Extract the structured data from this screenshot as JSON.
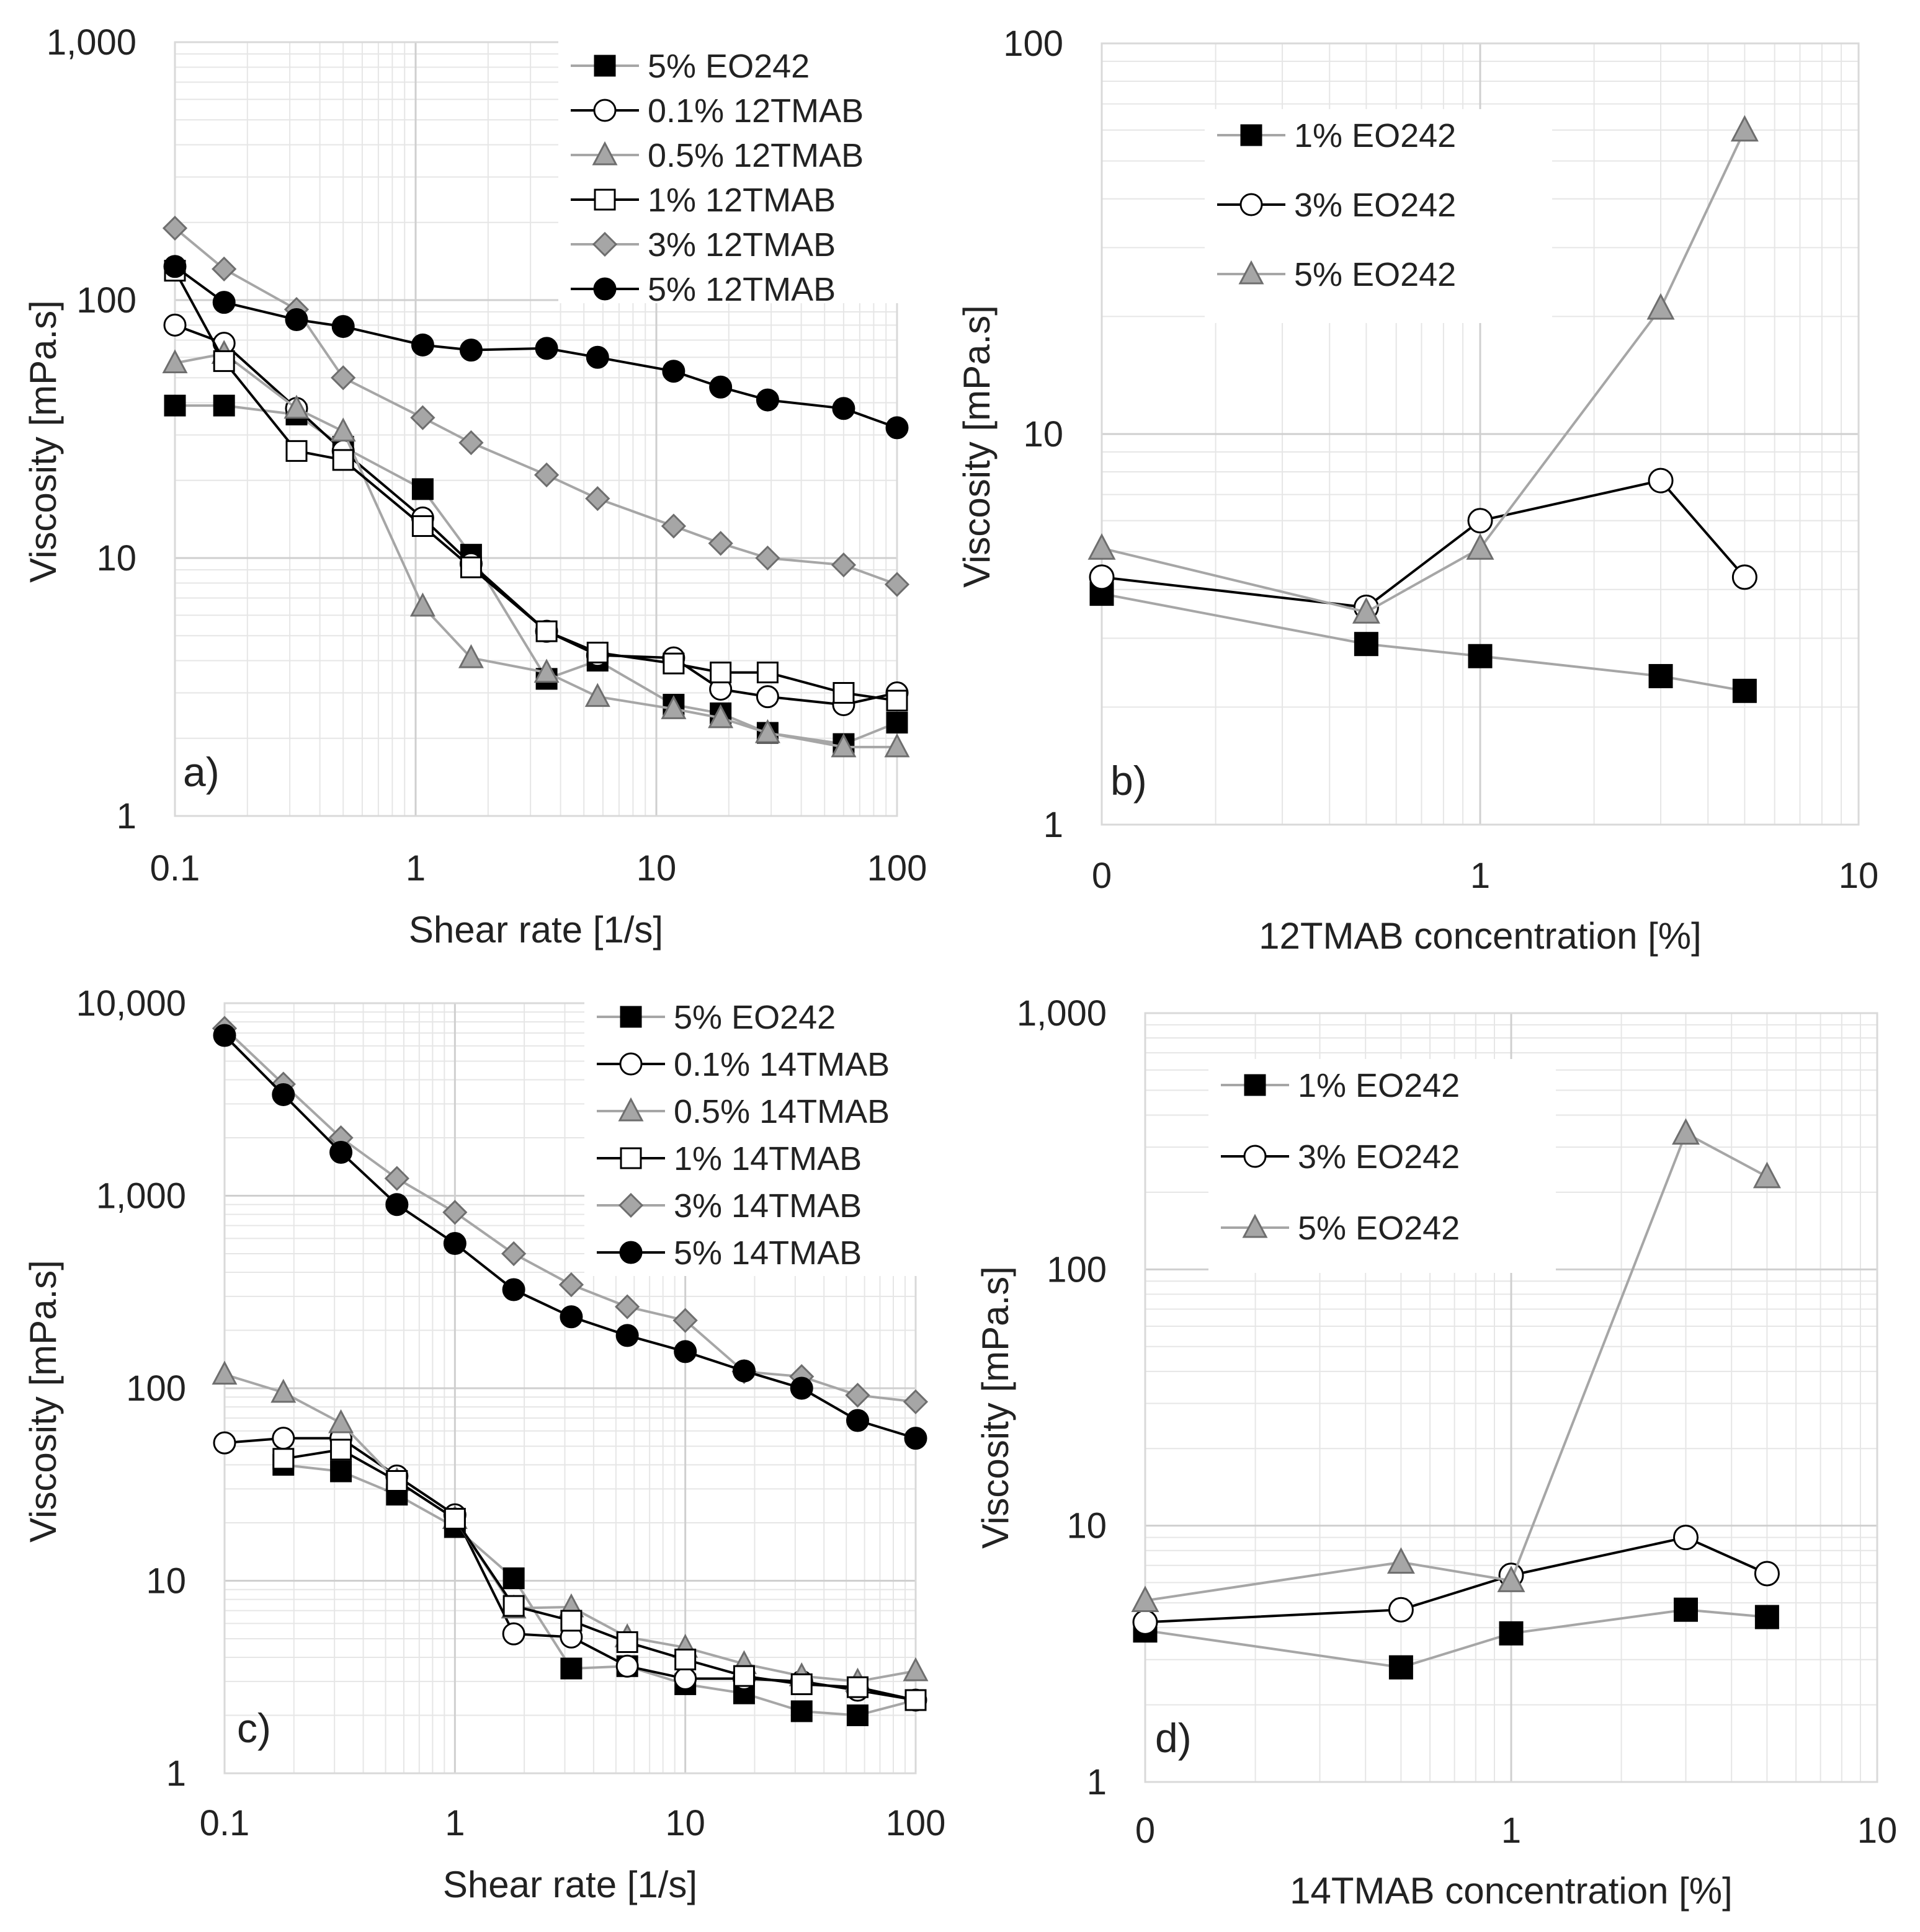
{
  "chart_data": [
    {
      "id": "a",
      "type": "line",
      "panel_label": "a)",
      "xlabel": "Shear rate [1/s]",
      "ylabel": "Viscosity  [mPa.s]",
      "xscale": "log",
      "yscale": "log",
      "xlim": [
        0.1,
        100
      ],
      "ylim": [
        1,
        1000
      ],
      "xticks": [
        {
          "v": 0.1,
          "label": "0.1"
        },
        {
          "v": 1,
          "label": "1"
        },
        {
          "v": 10,
          "label": "10"
        },
        {
          "v": 100,
          "label": "100"
        }
      ],
      "yticks": [
        {
          "v": 1,
          "label": "1"
        },
        {
          "v": 10,
          "label": "10"
        },
        {
          "v": 100,
          "label": "100"
        },
        {
          "v": 1000,
          "label": "1,000"
        }
      ],
      "legend_position": "top-right",
      "series": [
        {
          "name": "5% EO242",
          "marker": "square",
          "fill": "#000000",
          "line": "#a6a6a6",
          "x": [
            0.1,
            0.16,
            0.32,
            0.5,
            1.07,
            1.7,
            3.5,
            5.7,
            11.8,
            18.5,
            29,
            60,
            100
          ],
          "y": [
            39,
            39,
            36,
            27,
            18.5,
            10.3,
            3.4,
            4,
            2.7,
            2.5,
            2.1,
            1.9,
            2.3
          ]
        },
        {
          "name": "0.1% 12TMAB",
          "marker": "circle",
          "fill": "#ffffff",
          "line": "#000000",
          "x": [
            0.1,
            0.16,
            0.32,
            0.5,
            1.07,
            1.7,
            3.5,
            5.7,
            11.8,
            18.5,
            29,
            60,
            100
          ],
          "y": [
            80,
            68,
            38,
            26,
            14.3,
            9.5,
            5.2,
            4.2,
            4.1,
            3.1,
            2.9,
            2.7,
            3
          ]
        },
        {
          "name": "0.5% 12TMAB",
          "marker": "triangle",
          "fill": "#a6a6a6",
          "line": "#a6a6a6",
          "x": [
            0.1,
            0.16,
            0.32,
            0.5,
            1.07,
            1.7,
            3.5,
            5.7,
            11.8,
            18.5,
            29,
            60,
            100
          ],
          "y": [
            57,
            62,
            38,
            31,
            6.5,
            4.1,
            3.6,
            2.9,
            2.6,
            2.4,
            2.1,
            1.85,
            1.85
          ]
        },
        {
          "name": "1% 12TMAB",
          "marker": "square",
          "fill": "#ffffff",
          "line": "#000000",
          "x": [
            0.1,
            0.16,
            0.32,
            0.5,
            1.07,
            1.7,
            3.5,
            5.7,
            11.8,
            18.5,
            29,
            60,
            100
          ],
          "y": [
            130,
            58,
            26,
            24,
            13.3,
            9.2,
            5.2,
            4.3,
            3.9,
            3.6,
            3.6,
            3,
            2.8
          ]
        },
        {
          "name": "3% 12TMAB",
          "marker": "diamond",
          "fill": "#a6a6a6",
          "line": "#a6a6a6",
          "x": [
            0.1,
            0.16,
            0.32,
            0.5,
            1.07,
            1.7,
            3.5,
            5.7,
            11.8,
            18.5,
            29,
            60,
            100
          ],
          "y": [
            190,
            132,
            92,
            50,
            35,
            28,
            21,
            17,
            13.3,
            11.4,
            10,
            9.4,
            7.9
          ]
        },
        {
          "name": "5% 12TMAB",
          "marker": "circle",
          "fill": "#000000",
          "line": "#000000",
          "x": [
            0.1,
            0.16,
            0.32,
            0.5,
            1.07,
            1.7,
            3.5,
            5.7,
            11.8,
            18.5,
            29,
            60,
            100
          ],
          "y": [
            135,
            98,
            84,
            79,
            67,
            64,
            65,
            60,
            53,
            46,
            41,
            38,
            32
          ]
        }
      ]
    },
    {
      "id": "b",
      "type": "line",
      "panel_label": "b)",
      "xlabel": "12TMAB concentration [%]",
      "ylabel": "Viscosity [mPa.s]",
      "xscale": "log",
      "yscale": "log",
      "xlim": [
        0.1,
        10
      ],
      "ylim": [
        1,
        100
      ],
      "xticks": [
        {
          "v": 0.1,
          "label": "0"
        },
        {
          "v": 1,
          "label": "1"
        },
        {
          "v": 10,
          "label": "10"
        }
      ],
      "yticks": [
        {
          "v": 1,
          "label": "1"
        },
        {
          "v": 10,
          "label": "10"
        },
        {
          "v": 100,
          "label": "100"
        }
      ],
      "legend_position": "top-left",
      "series": [
        {
          "name": "1% EO242",
          "marker": "square",
          "fill": "#000000",
          "line": "#a6a6a6",
          "x": [
            0.1,
            0.5,
            1,
            3,
            5
          ],
          "y": [
            3.9,
            2.9,
            2.7,
            2.4,
            2.2
          ]
        },
        {
          "name": "3% EO242",
          "marker": "circle",
          "fill": "#ffffff",
          "line": "#000000",
          "x": [
            0.1,
            0.5,
            1,
            3,
            5
          ],
          "y": [
            4.3,
            3.6,
            6,
            7.6,
            4.3
          ]
        },
        {
          "name": "5% EO242",
          "marker": "triangle",
          "fill": "#a6a6a6",
          "line": "#a6a6a6",
          "x": [
            0.1,
            0.5,
            1,
            3,
            5
          ],
          "y": [
            5.1,
            3.5,
            5.1,
            21,
            60
          ]
        }
      ]
    },
    {
      "id": "c",
      "type": "line",
      "panel_label": "c)",
      "xlabel": "Shear rate [1/s]",
      "ylabel": "Viscosity [mPa.s]",
      "xscale": "log",
      "yscale": "log",
      "xlim": [
        0.1,
        100
      ],
      "ylim": [
        1,
        10000
      ],
      "xticks": [
        {
          "v": 0.1,
          "label": "0.1"
        },
        {
          "v": 1,
          "label": "1"
        },
        {
          "v": 10,
          "label": "10"
        },
        {
          "v": 100,
          "label": "100"
        }
      ],
      "yticks": [
        {
          "v": 1,
          "label": "1"
        },
        {
          "v": 10,
          "label": "10"
        },
        {
          "v": 100,
          "label": "100"
        },
        {
          "v": 1000,
          "label": "1,000"
        },
        {
          "v": 10000,
          "label": "10,000"
        }
      ],
      "legend_position": "top-right",
      "series": [
        {
          "name": "5% EO242",
          "marker": "square",
          "fill": "#000000",
          "line": "#a6a6a6",
          "x": [
            0.18,
            0.32,
            0.56,
            1,
            1.8,
            3.2,
            5.6,
            10,
            18,
            32,
            56,
            100
          ],
          "y": [
            40,
            37,
            28,
            19,
            10.3,
            3.5,
            3.6,
            2.9,
            2.6,
            2.1,
            2,
            2.4
          ]
        },
        {
          "name": "0.1% 14TMAB",
          "marker": "circle",
          "fill": "#ffffff",
          "line": "#000000",
          "x": [
            0.1,
            0.18,
            0.32,
            0.56,
            1,
            1.8,
            3.2,
            5.6,
            10,
            18,
            32,
            56,
            100
          ],
          "y": [
            52,
            55,
            55,
            35,
            22,
            5.3,
            5.1,
            3.6,
            3.1,
            3.1,
            3,
            2.7,
            2.4
          ]
        },
        {
          "name": "0.5% 14TMAB",
          "marker": "triangle",
          "fill": "#a6a6a6",
          "line": "#a6a6a6",
          "x": [
            0.1,
            0.18,
            0.32,
            0.56,
            1,
            1.8,
            3.2,
            5.6,
            10,
            18,
            32,
            56,
            100
          ],
          "y": [
            118,
            95,
            66,
            33,
            21,
            7.2,
            7.3,
            5.1,
            4.5,
            3.7,
            3.2,
            3,
            3.4
          ]
        },
        {
          "name": "1% 14TMAB",
          "marker": "square",
          "fill": "#ffffff",
          "line": "#000000",
          "x": [
            0.18,
            0.32,
            0.56,
            1,
            1.8,
            3.2,
            5.6,
            10,
            18,
            32,
            56,
            100
          ],
          "y": [
            43,
            48,
            33,
            21,
            7.4,
            6.2,
            4.8,
            3.9,
            3.2,
            2.9,
            2.8,
            2.4
          ]
        },
        {
          "name": "3% 14TMAB",
          "marker": "diamond",
          "fill": "#a6a6a6",
          "line": "#a6a6a6",
          "x": [
            0.1,
            0.18,
            0.32,
            0.56,
            1,
            1.8,
            3.2,
            5.6,
            10,
            18,
            32,
            56,
            100
          ],
          "y": [
            7400,
            3800,
            2000,
            1230,
            820,
            500,
            345,
            265,
            225,
            122,
            115,
            92,
            85
          ]
        },
        {
          "name": "5% 14TMAB",
          "marker": "circle",
          "fill": "#000000",
          "line": "#000000",
          "x": [
            0.1,
            0.18,
            0.32,
            0.56,
            1,
            1.8,
            3.2,
            5.6,
            10,
            18,
            32,
            56,
            100
          ],
          "y": [
            6800,
            3350,
            1680,
            900,
            565,
            325,
            235,
            188,
            155,
            123,
            100,
            68,
            55
          ]
        }
      ]
    },
    {
      "id": "d",
      "type": "line",
      "panel_label": "d)",
      "xlabel": "14TMAB concentration  [%]",
      "ylabel": "Viscosity [mPa.s]",
      "xscale": "log",
      "yscale": "log",
      "xlim": [
        0.1,
        10
      ],
      "ylim": [
        1,
        1000
      ],
      "xticks": [
        {
          "v": 0.1,
          "label": "0"
        },
        {
          "v": 1,
          "label": "1"
        },
        {
          "v": 10,
          "label": "10"
        }
      ],
      "yticks": [
        {
          "v": 1,
          "label": "1"
        },
        {
          "v": 10,
          "label": "10"
        },
        {
          "v": 100,
          "label": "100"
        },
        {
          "v": 1000,
          "label": "1,000"
        }
      ],
      "legend_position": "top-left",
      "series": [
        {
          "name": "1% EO242",
          "marker": "square",
          "fill": "#000000",
          "line": "#a6a6a6",
          "x": [
            0.1,
            0.5,
            1,
            3,
            5
          ],
          "y": [
            3.9,
            2.8,
            3.8,
            4.7,
            4.4
          ]
        },
        {
          "name": "3% EO242",
          "marker": "circle",
          "fill": "#ffffff",
          "line": "#000000",
          "x": [
            0.1,
            0.5,
            1,
            3,
            5
          ],
          "y": [
            4.2,
            4.7,
            6.4,
            9,
            6.5
          ]
        },
        {
          "name": "5% EO242",
          "marker": "triangle",
          "fill": "#a6a6a6",
          "line": "#a6a6a6",
          "x": [
            0.1,
            0.5,
            1,
            3,
            5
          ],
          "y": [
            5.1,
            7.2,
            6.1,
            340,
            230
          ]
        }
      ]
    }
  ]
}
